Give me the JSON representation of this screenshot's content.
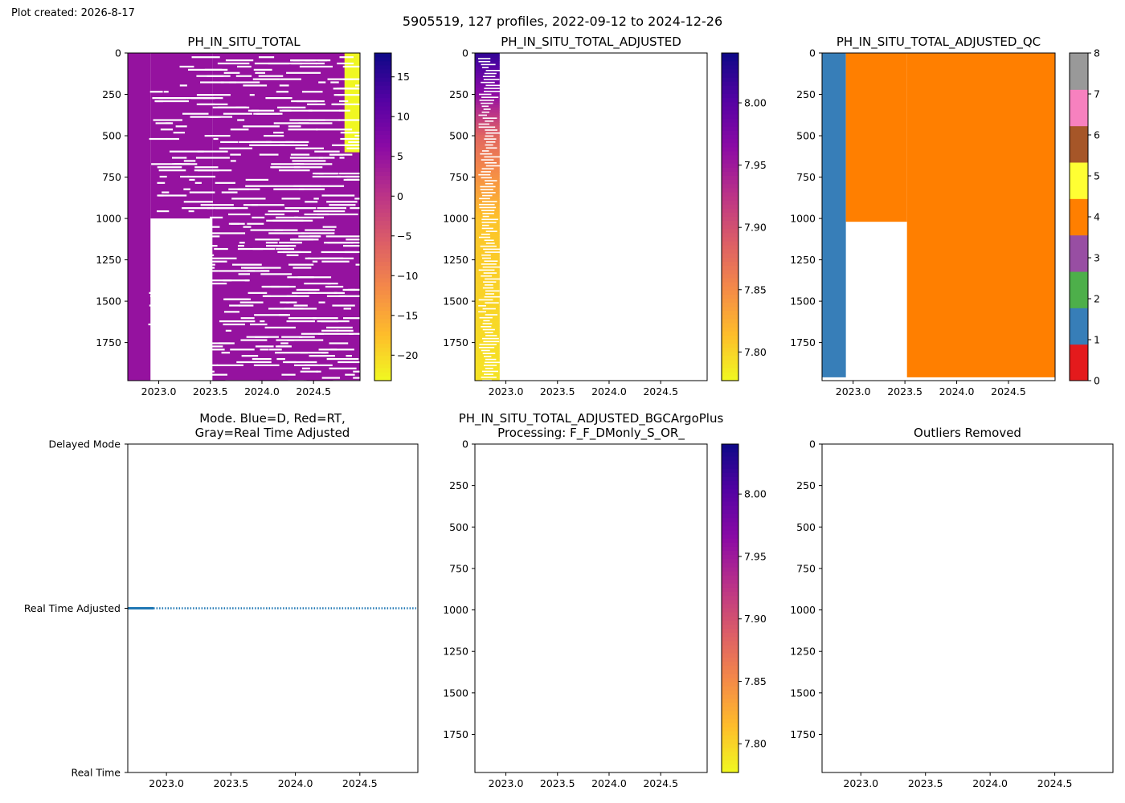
{
  "figure": {
    "created_label": "Plot created: 2026-8-17",
    "suptitle": "5905519, 127 profiles, 2022-09-12 to 2024-12-26"
  },
  "palettes": {
    "qc_colors": [
      "#e41a1c",
      "#377eb8",
      "#4daf4a",
      "#984ea3",
      "#ff7f00",
      "#ffff33",
      "#a65628",
      "#f781bf",
      "#999999"
    ],
    "mode_line_color": "#1f77b4"
  },
  "chart_data": [
    {
      "id": "ph-raw",
      "type": "heatmap",
      "title": "PH_IN_SITU_TOTAL",
      "colormap": "plasma_r",
      "xlim": [
        2022.7,
        2024.95
      ],
      "ylim": [
        1980,
        0
      ],
      "xticks": [
        "2023.0",
        "2023.5",
        "2024.0",
        "2024.5"
      ],
      "yticks": [
        "0",
        "250",
        "500",
        "750",
        "1000",
        "1250",
        "1500",
        "1750"
      ],
      "colorbar": {
        "range": [
          -23.2,
          18
        ],
        "ticks": [
          "−20",
          "−15",
          "−10",
          "−5",
          "0",
          "5",
          "10",
          "15"
        ]
      },
      "dominant_value": 5,
      "anomaly_value": -23,
      "anomaly_time_range": [
        2024.8,
        2024.95
      ],
      "anomaly_depth_range": [
        0,
        600
      ],
      "coverage": [
        {
          "time": [
            2022.7,
            2022.92
          ],
          "max_depth": 1980
        },
        {
          "time": [
            2022.92,
            2023.52
          ],
          "max_depth": 1000
        },
        {
          "time": [
            2023.52,
            2024.95
          ],
          "max_depth": 1980
        }
      ]
    },
    {
      "id": "ph-adjusted",
      "type": "heatmap",
      "title": "PH_IN_SITU_TOTAL_ADJUSTED",
      "colormap": "plasma_r",
      "xlim": [
        2022.7,
        2024.95
      ],
      "ylim": [
        1980,
        0
      ],
      "xticks": [
        "2023.0",
        "2023.5",
        "2024.0",
        "2024.5"
      ],
      "yticks": [
        "0",
        "250",
        "500",
        "750",
        "1000",
        "1250",
        "1500",
        "1750"
      ],
      "colorbar": {
        "range": [
          7.777,
          8.04
        ],
        "ticks": [
          "7.80",
          "7.85",
          "7.90",
          "7.95",
          "8.00"
        ]
      },
      "data_time_range": [
        2022.7,
        2022.94
      ],
      "profile": [
        {
          "depth": 0,
          "value": 8.02
        },
        {
          "depth": 250,
          "value": 7.96
        },
        {
          "depth": 500,
          "value": 7.88
        },
        {
          "depth": 1000,
          "value": 7.81
        },
        {
          "depth": 1980,
          "value": 7.79
        }
      ]
    },
    {
      "id": "ph-adjusted-qc",
      "type": "heatmap",
      "title": "PH_IN_SITU_TOTAL_ADJUSTED_QC",
      "colormap": "qc_categorical",
      "xlim": [
        2022.7,
        2024.95
      ],
      "ylim": [
        1980,
        0
      ],
      "xticks": [
        "2023.0",
        "2023.5",
        "2024.0",
        "2024.5"
      ],
      "yticks": [
        "0",
        "250",
        "500",
        "750",
        "1000",
        "1250",
        "1500",
        "1750"
      ],
      "colorbar": {
        "range": [
          0,
          8
        ],
        "ticks": [
          "0",
          "1",
          "2",
          "3",
          "4",
          "5",
          "6",
          "7",
          "8"
        ]
      },
      "segments": [
        {
          "time": [
            2022.7,
            2022.93
          ],
          "flag": 1,
          "max_depth": 1960
        },
        {
          "time": [
            2022.93,
            2023.52
          ],
          "flag": 4,
          "max_depth": 1020
        },
        {
          "time": [
            2023.52,
            2024.95
          ],
          "flag": 4,
          "max_depth": 1960
        }
      ]
    },
    {
      "id": "mode",
      "type": "line",
      "title": "Mode. Blue=D, Red=RT,",
      "title_line2": "Gray=Real Time Adjusted",
      "xlim": [
        2022.7,
        2024.95
      ],
      "xticks": [
        "2023.0",
        "2023.5",
        "2024.0",
        "2024.5"
      ],
      "yticks": [
        "Delayed Mode",
        "Real Time Adjusted",
        "Real Time"
      ],
      "series": [
        {
          "style": "solid",
          "x_range": [
            2022.7,
            2022.9
          ],
          "y": "Real Time Adjusted"
        },
        {
          "style": "dotted",
          "x_range": [
            2022.9,
            2024.95
          ],
          "y": "Real Time Adjusted"
        }
      ]
    },
    {
      "id": "ph-bgcargoplus",
      "type": "heatmap",
      "title": "PH_IN_SITU_TOTAL_ADJUSTED_BGCArgoPlus",
      "title_line2": "Processing: F_F_DMonly_S_OR_",
      "colormap": "plasma_r",
      "xlim": [
        2022.7,
        2024.95
      ],
      "ylim": [
        1980,
        0
      ],
      "xticks": [
        "2023.0",
        "2023.5",
        "2024.0",
        "2024.5"
      ],
      "yticks": [
        "0",
        "250",
        "500",
        "750",
        "1000",
        "1250",
        "1500",
        "1750"
      ],
      "colorbar": {
        "range": [
          7.777,
          8.04
        ],
        "ticks": [
          "7.80",
          "7.85",
          "7.90",
          "7.95",
          "8.00"
        ]
      }
    },
    {
      "id": "outliers",
      "type": "heatmap",
      "title": "Outliers Removed",
      "xlim": [
        2022.7,
        2024.95
      ],
      "ylim": [
        1980,
        0
      ],
      "xticks": [
        "2023.0",
        "2023.5",
        "2024.0",
        "2024.5"
      ],
      "yticks": [
        "0",
        "250",
        "500",
        "750",
        "1000",
        "1250",
        "1500",
        "1750"
      ]
    }
  ]
}
